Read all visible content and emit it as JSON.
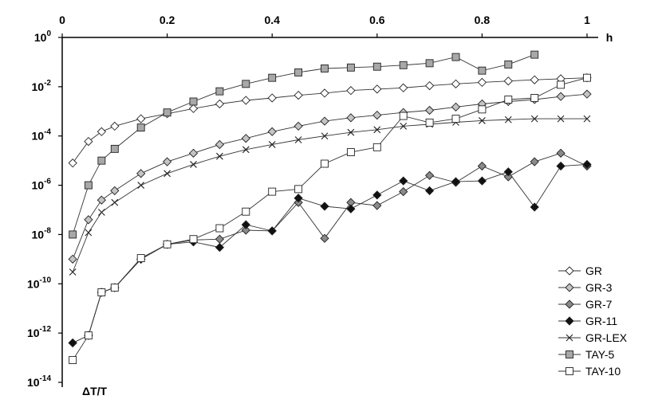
{
  "chart_data": {
    "type": "line",
    "title": "",
    "xlabel": "h",
    "ylabel": "ΔT/T",
    "xlim": [
      0,
      1
    ],
    "ylim_exponents": [
      -14,
      0
    ],
    "y_scale": "log10",
    "x_ticks": [
      "0",
      "0.2",
      "0.4",
      "0.6",
      "0.8",
      "1"
    ],
    "y_tick_base": "10",
    "y_tick_exponents": [
      "0",
      "-2",
      "-4",
      "-6",
      "-8",
      "-10",
      "-12",
      "-14"
    ],
    "x_axis_position": "top",
    "grid": false,
    "legend_position": "bottom-right",
    "series": [
      {
        "name": "GR",
        "marker": "open-diamond",
        "x": [
          0.02,
          0.05,
          0.075,
          0.1,
          0.15,
          0.2,
          0.25,
          0.3,
          0.35,
          0.4,
          0.45,
          0.5,
          0.55,
          0.6,
          0.65,
          0.7,
          0.75,
          0.8,
          0.85,
          0.9,
          0.95,
          1.0
        ],
        "y": [
          8e-06,
          6e-05,
          0.00015,
          0.00025,
          0.0005,
          0.0008,
          0.0013,
          0.002,
          0.0028,
          0.0035,
          0.0045,
          0.0055,
          0.007,
          0.008,
          0.009,
          0.011,
          0.013,
          0.015,
          0.017,
          0.019,
          0.021,
          0.023
        ]
      },
      {
        "name": "GR-3",
        "marker": "light-gray-diamond",
        "x": [
          0.02,
          0.05,
          0.075,
          0.1,
          0.15,
          0.2,
          0.25,
          0.3,
          0.35,
          0.4,
          0.45,
          0.5,
          0.55,
          0.6,
          0.65,
          0.7,
          0.75,
          0.8,
          0.85,
          0.9,
          0.95,
          1.0
        ],
        "y": [
          1e-09,
          4e-08,
          2.5e-07,
          6e-07,
          3e-06,
          9e-06,
          2e-05,
          4.5e-05,
          8e-05,
          0.00015,
          0.00025,
          0.0004,
          0.00055,
          0.0007,
          0.0009,
          0.0011,
          0.0015,
          0.002,
          0.0025,
          0.003,
          0.004,
          0.005
        ]
      },
      {
        "name": "GR-7",
        "marker": "gray-diamond",
        "x": [
          0.02,
          0.05,
          0.075,
          0.1,
          0.15,
          0.2,
          0.25,
          0.3,
          0.35,
          0.4,
          0.45,
          0.5,
          0.55,
          0.6,
          0.65,
          0.7,
          0.75,
          0.8,
          0.85,
          0.9,
          0.95,
          1.0
        ],
        "y": [
          4e-13,
          8e-13,
          4.5e-11,
          7e-11,
          1e-09,
          4e-09,
          6e-09,
          6.5e-09,
          1.5e-08,
          1.4e-08,
          2e-07,
          7e-09,
          2e-07,
          1.5e-07,
          5.5e-07,
          2.5e-06,
          1.3e-06,
          6e-06,
          2.2e-06,
          9e-06,
          2e-05,
          6e-06
        ]
      },
      {
        "name": "GR-11",
        "marker": "black-diamond",
        "x": [
          0.02,
          0.05,
          0.075,
          0.1,
          0.15,
          0.2,
          0.25,
          0.3,
          0.35,
          0.4,
          0.45,
          0.5,
          0.55,
          0.6,
          0.65,
          0.7,
          0.75,
          0.8,
          0.85,
          0.9,
          0.95,
          1.0
        ],
        "y": [
          4e-13,
          8e-13,
          4.5e-11,
          7e-11,
          1e-09,
          4e-09,
          5e-09,
          3e-09,
          2.5e-08,
          1.4e-08,
          3e-07,
          1.4e-07,
          1.1e-07,
          4e-07,
          1.5e-06,
          6e-07,
          1.4e-06,
          1.5e-06,
          3.5e-06,
          1.3e-07,
          6e-06,
          7e-06
        ]
      },
      {
        "name": "GR-LEX",
        "marker": "cross",
        "x": [
          0.02,
          0.05,
          0.075,
          0.1,
          0.15,
          0.2,
          0.25,
          0.3,
          0.35,
          0.4,
          0.45,
          0.5,
          0.55,
          0.6,
          0.65,
          0.7,
          0.75,
          0.8,
          0.85,
          0.9,
          0.95,
          1.0
        ],
        "y": [
          3e-10,
          1.2e-08,
          8e-08,
          2e-07,
          1e-06,
          3e-06,
          7e-06,
          1.5e-05,
          2.8e-05,
          4.5e-05,
          7e-05,
          0.0001,
          0.00014,
          0.00018,
          0.00025,
          0.0003,
          0.00036,
          0.00042,
          0.00046,
          0.0005,
          0.0005,
          0.0005
        ]
      },
      {
        "name": "TAY-5",
        "marker": "gray-square",
        "x": [
          0.02,
          0.05,
          0.075,
          0.1,
          0.15,
          0.2,
          0.25,
          0.3,
          0.35,
          0.4,
          0.45,
          0.5,
          0.55,
          0.6,
          0.65,
          0.7,
          0.75,
          0.8,
          0.85,
          0.9
        ],
        "y": [
          1e-08,
          1e-06,
          1e-05,
          3e-05,
          0.00022,
          0.0009,
          0.0025,
          0.0065,
          0.013,
          0.023,
          0.038,
          0.055,
          0.06,
          0.065,
          0.075,
          0.09,
          0.16,
          0.045,
          0.08,
          0.2
        ]
      },
      {
        "name": "TAY-10",
        "marker": "open-square",
        "x": [
          0.02,
          0.05,
          0.075,
          0.1,
          0.15,
          0.2,
          0.25,
          0.3,
          0.35,
          0.4,
          0.45,
          0.5,
          0.55,
          0.6,
          0.65,
          0.7,
          0.75,
          0.8,
          0.85,
          0.9,
          0.95,
          1.0
        ],
        "y": [
          8e-14,
          8e-13,
          4.5e-11,
          7e-11,
          1.1e-09,
          4e-09,
          6.5e-09,
          1.8e-08,
          8.5e-08,
          5.5e-07,
          7e-07,
          7.5e-06,
          2.2e-05,
          3.5e-05,
          0.00065,
          0.00035,
          0.0005,
          0.0012,
          0.003,
          0.0035,
          0.012,
          0.023
        ]
      }
    ]
  }
}
